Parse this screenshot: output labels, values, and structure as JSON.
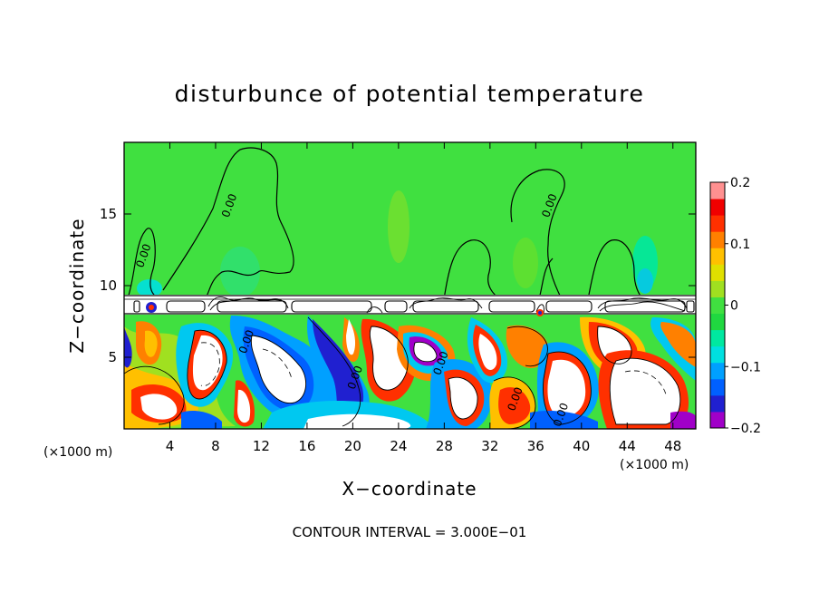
{
  "chart_data": {
    "type": "heatmap",
    "title": "disturbunce of potential temperature",
    "xlabel": "X−coordinate",
    "ylabel": "Z−coordinate",
    "x_unit_left": "(×1000 m)",
    "x_unit_right": "(×1000 m)",
    "xlim": [
      0,
      50
    ],
    "ylim": [
      0,
      20
    ],
    "x_ticks": [
      4,
      8,
      12,
      16,
      20,
      24,
      28,
      32,
      36,
      40,
      44,
      48
    ],
    "x_tick_labels": [
      "4",
      "8",
      "12",
      "16",
      "20",
      "24",
      "28",
      "32",
      "36",
      "40",
      "44",
      "48"
    ],
    "y_ticks": [
      5,
      10,
      15
    ],
    "y_tick_labels": [
      "5",
      "10",
      "15"
    ],
    "colorbar": {
      "range": [
        -0.2,
        0.2
      ],
      "tick_values": [
        -0.2,
        -0.1,
        0,
        0.1,
        0.2
      ],
      "tick_labels": [
        "−0.2",
        "−0.1",
        "0",
        "0.1",
        "0.2"
      ],
      "colors": [
        "#a000c8",
        "#2020d0",
        "#0060ff",
        "#00a0ff",
        "#00e0e0",
        "#00e8a0",
        "#20d840",
        "#40e040",
        "#a0e020",
        "#e0e000",
        "#ffc000",
        "#ff8000",
        "#ff3000",
        "#f00000",
        "#ff9090"
      ]
    },
    "background_value": 0.0,
    "boundary_layer_top_z": 9.2,
    "contour_labels": [
      {
        "text": "0.00",
        "x": 2.0,
        "z": 12.0
      },
      {
        "text": "0.00",
        "x": 9.5,
        "z": 15.5
      },
      {
        "text": "0.00",
        "x": 37.5,
        "z": 15.5
      },
      {
        "text": "0.00",
        "x": 11.0,
        "z": 6.0
      },
      {
        "text": "0.00",
        "x": 20.5,
        "z": 3.5
      },
      {
        "text": "0.00",
        "x": 28.0,
        "z": 4.5
      },
      {
        "text": "0.00",
        "x": 34.5,
        "z": 2.0
      },
      {
        "text": "0.00",
        "x": 38.5,
        "z": 0.9
      }
    ],
    "contour_interval_text": "CONTOUR INTERVAL = 3.000E−01"
  }
}
